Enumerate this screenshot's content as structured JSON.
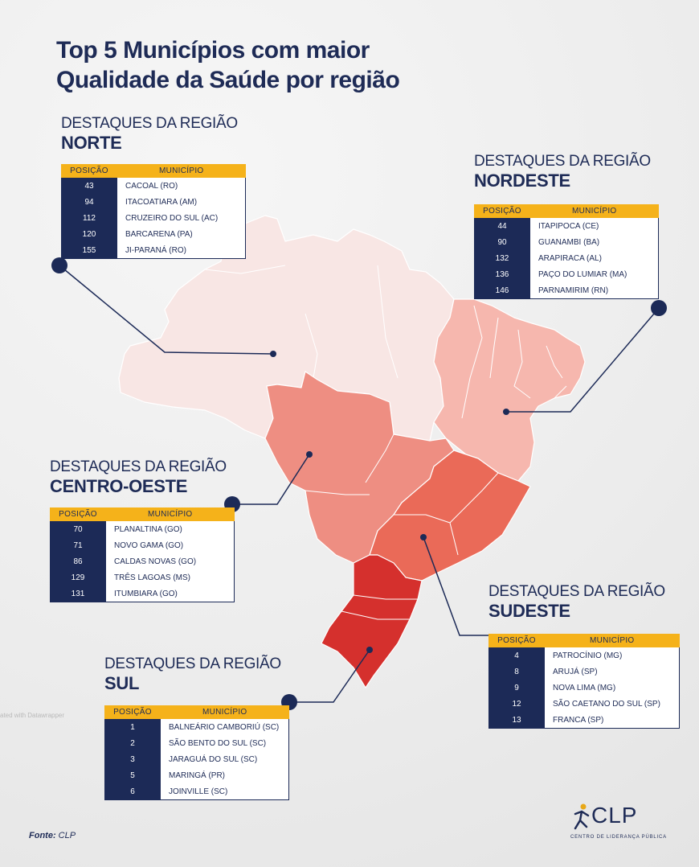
{
  "title": {
    "line1": "Top 5 Municípios com maior",
    "line2": "Qualidade da Saúde por região"
  },
  "colors": {
    "navy": "#1c2a57",
    "gold": "#f5b21a",
    "norte": "#f8e6e4",
    "nordeste": "#f6b7ae",
    "centro_oeste": "#ee8e82",
    "sudeste": "#ea6a58",
    "sul": "#d5302d"
  },
  "table_headers": {
    "pos": "POSIÇÃO",
    "mun": "MUNICÍPIO"
  },
  "regions": {
    "norte": {
      "pre": "DESTAQUES DA REGIÃO",
      "name": "NORTE",
      "rows": [
        {
          "pos": "43",
          "mun": "CACOAL (RO)"
        },
        {
          "pos": "94",
          "mun": "ITACOATIARA (AM)"
        },
        {
          "pos": "112",
          "mun": "CRUZEIRO DO SUL (AC)"
        },
        {
          "pos": "120",
          "mun": "BARCARENA (PA)"
        },
        {
          "pos": "155",
          "mun": "JI-PARANÁ (RO)"
        }
      ]
    },
    "nordeste": {
      "pre": "DESTAQUES DA REGIÃO",
      "name": "NORDESTE",
      "rows": [
        {
          "pos": "44",
          "mun": "ITAPIPOCA (CE)"
        },
        {
          "pos": "90",
          "mun": "GUANAMBI (BA)"
        },
        {
          "pos": "132",
          "mun": "ARAPIRACA (AL)"
        },
        {
          "pos": "136",
          "mun": "PAÇO DO LUMIAR (MA)"
        },
        {
          "pos": "146",
          "mun": "PARNAMIRIM (RN)"
        }
      ]
    },
    "centro_oeste": {
      "pre": "DESTAQUES DA REGIÃO",
      "name": "CENTRO-OESTE",
      "rows": [
        {
          "pos": "70",
          "mun": "PLANALTINA (GO)"
        },
        {
          "pos": "71",
          "mun": "NOVO GAMA (GO)"
        },
        {
          "pos": "86",
          "mun": "CALDAS NOVAS (GO)"
        },
        {
          "pos": "129",
          "mun": "TRÊS LAGOAS (MS)"
        },
        {
          "pos": "131",
          "mun": "ITUMBIARA (GO)"
        }
      ]
    },
    "sudeste": {
      "pre": "DESTAQUES DA REGIÃO",
      "name": "SUDESTE",
      "rows": [
        {
          "pos": "4",
          "mun": "PATROCÍNIO (MG)"
        },
        {
          "pos": "8",
          "mun": "ARUJÁ (SP)"
        },
        {
          "pos": "9",
          "mun": "NOVA LIMA (MG)"
        },
        {
          "pos": "12",
          "mun": "SÃO CAETANO DO SUL (SP)"
        },
        {
          "pos": "13",
          "mun": "FRANCA (SP)"
        }
      ]
    },
    "sul": {
      "pre": "DESTAQUES DA REGIÃO",
      "name": "SUL",
      "rows": [
        {
          "pos": "1",
          "mun": "BALNEÁRIO CAMBORIÚ (SC)"
        },
        {
          "pos": "2",
          "mun": "SÃO BENTO DO SUL (SC)"
        },
        {
          "pos": "3",
          "mun": "JARAGUÁ DO SUL (SC)"
        },
        {
          "pos": "5",
          "mun": "MARINGÁ (PR)"
        },
        {
          "pos": "6",
          "mun": "JOINVILLE (SC)"
        }
      ]
    }
  },
  "watermark": "ated with Datawrapper",
  "source": {
    "label": "Fonte:",
    "value": "CLP"
  },
  "logo": {
    "letters": "CLP",
    "subtitle": "CENTRO DE LIDERANÇA PÚBLICA"
  }
}
